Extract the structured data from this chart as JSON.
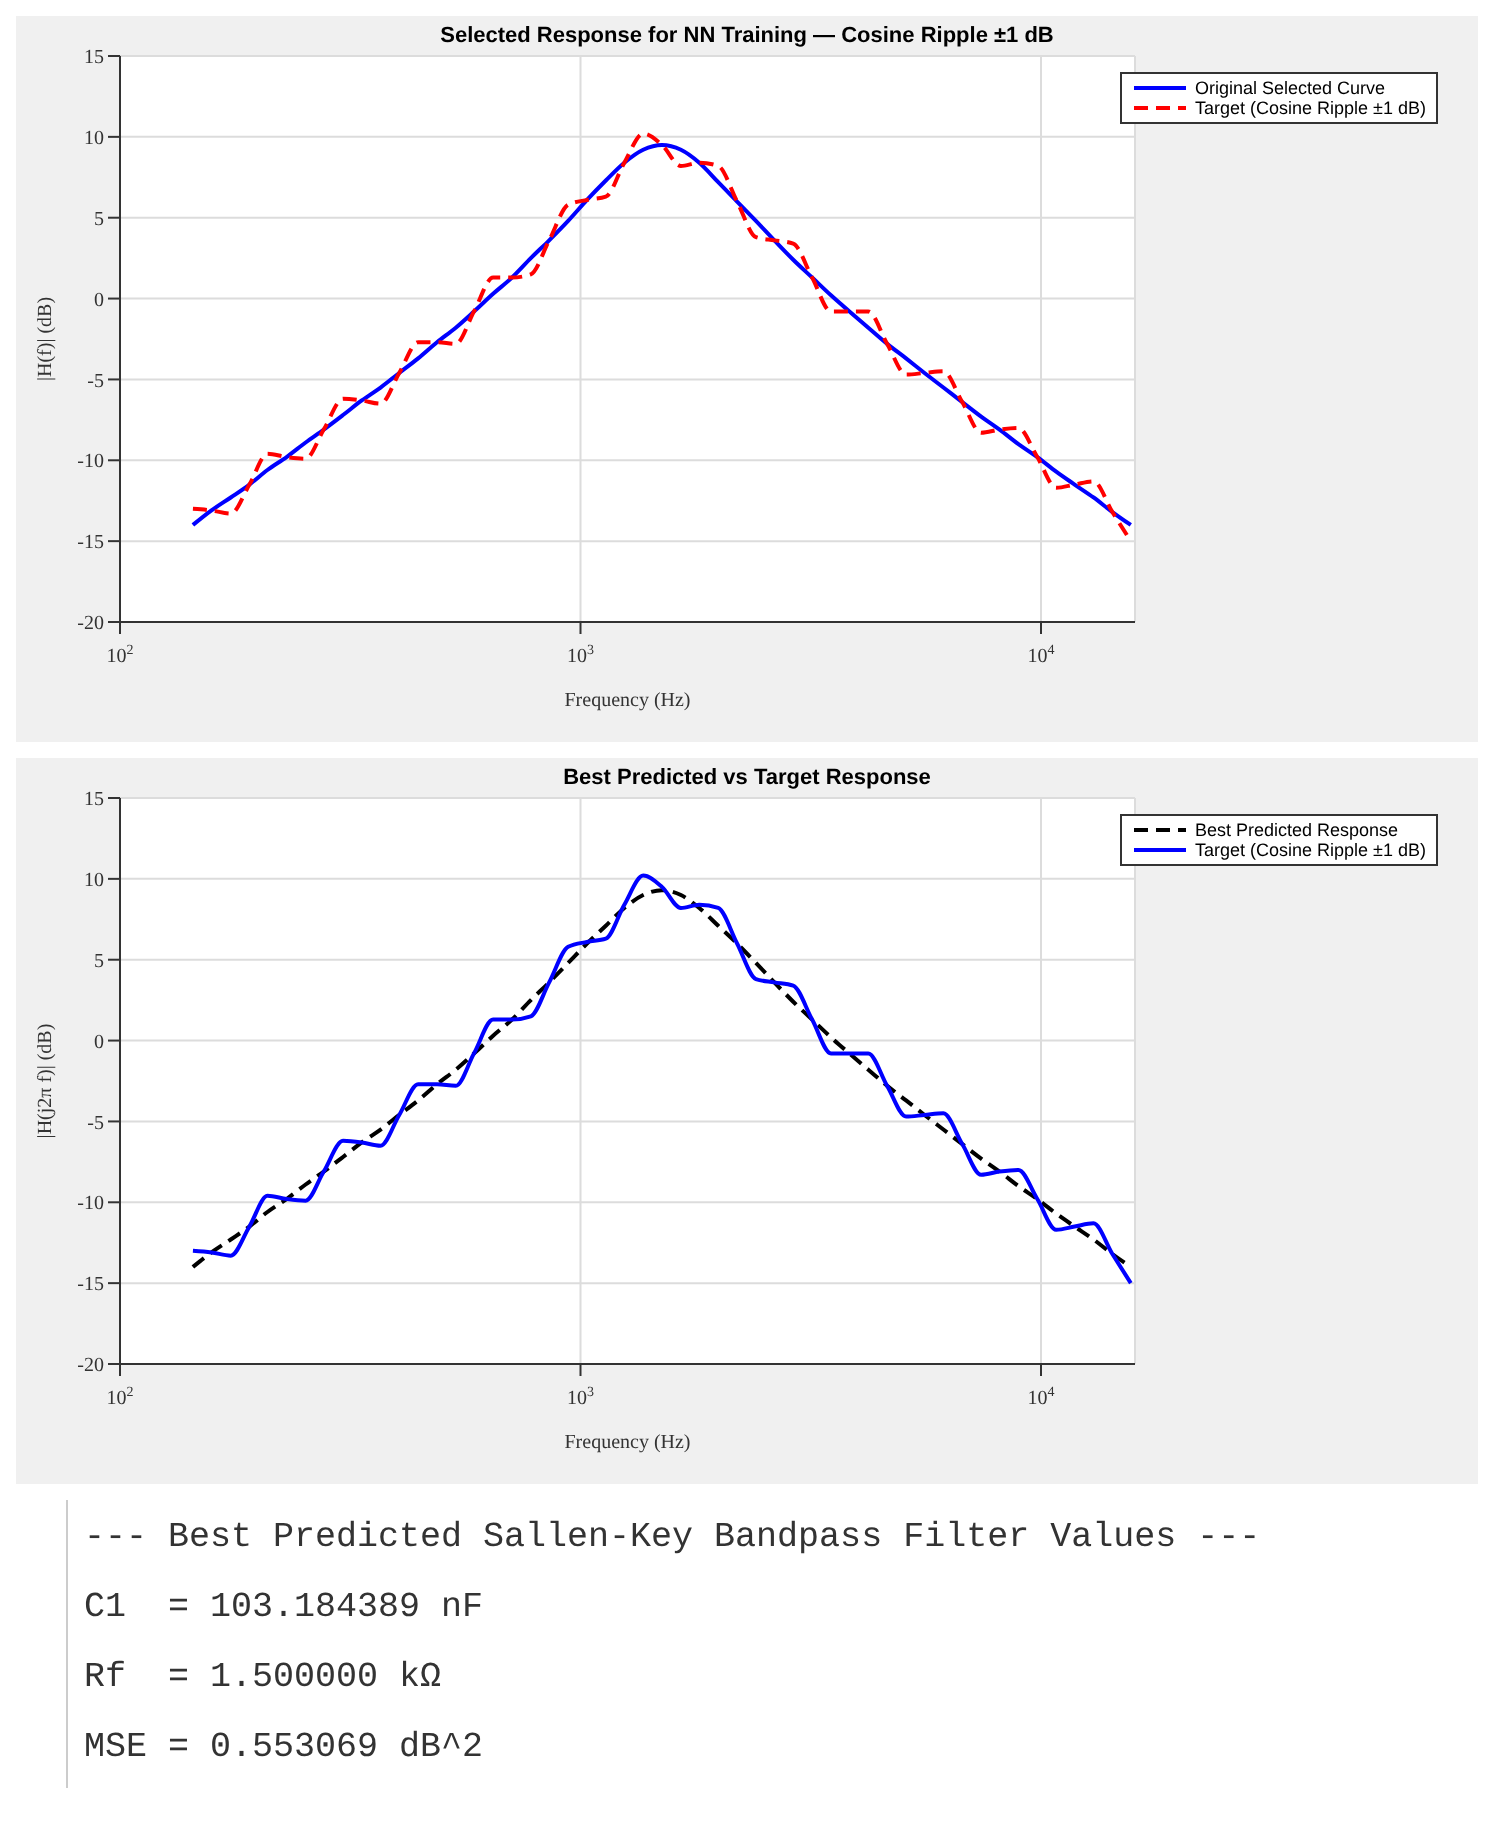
{
  "chart_data": [
    {
      "type": "line",
      "title": "Selected Response for NN Training — Cosine Ripple ±1 dB",
      "xlabel": "Frequency (Hz)",
      "ylabel": "|H(f)| (dB)",
      "log": "x",
      "grid": true,
      "legend": "top right",
      "marker": "none",
      "xlim": [
        100,
        16000
      ],
      "xticks": [
        {
          "value": 100,
          "label": "10$^{2}$"
        },
        {
          "value": 1000,
          "label": "10$^{3}$"
        },
        {
          "value": 10000,
          "label": "10$^{4}$"
        }
      ],
      "ylim": [
        -20,
        15
      ],
      "yticks": [
        -20,
        -15,
        -10,
        -5,
        0,
        5,
        10,
        15
      ],
      "x": [
        144,
        158,
        174,
        191,
        209,
        230,
        253,
        277,
        305,
        335,
        368,
        404,
        444,
        488,
        536,
        587,
        646,
        710,
        780,
        855,
        940,
        1033,
        1135,
        1245,
        1368,
        1503,
        1652,
        1811,
        1991,
        2188,
        2404,
        2636,
        2897,
        3184,
        3499,
        3837,
        4217,
        4634,
        5093,
        5585,
        6138,
        6745,
        7413,
        8128,
        8933,
        9817,
        10789,
        11830,
        13002,
        14289,
        15668
      ],
      "series": [
        {
          "name": "Original Selected Curve",
          "color": "#0000ff",
          "line_style": "solid",
          "values": [
            -14.0,
            -13.1,
            -12.3,
            -11.5,
            -10.6,
            -9.8,
            -8.9,
            -8.1,
            -7.2,
            -6.3,
            -5.5,
            -4.6,
            -3.7,
            -2.7,
            -1.8,
            -0.8,
            0.3,
            1.3,
            2.5,
            3.6,
            4.8,
            6.1,
            7.3,
            8.4,
            9.2,
            9.5,
            9.2,
            8.4,
            7.2,
            6.0,
            4.8,
            3.6,
            2.4,
            1.3,
            0.2,
            -0.8,
            -1.8,
            -2.8,
            -3.7,
            -4.6,
            -5.5,
            -6.4,
            -7.3,
            -8.1,
            -9.0,
            -9.8,
            -10.7,
            -11.5,
            -12.3,
            -13.2,
            -14.0
          ]
        },
        {
          "name": "Target (Cosine Ripple ±1 dB)",
          "color": "#ff0000",
          "line_style": "dashed",
          "values": [
            -13.0,
            -13.1,
            -13.3,
            -11.5,
            -9.6,
            -9.8,
            -9.9,
            -8.1,
            -6.2,
            -6.3,
            -6.5,
            -4.6,
            -2.7,
            -2.7,
            -2.8,
            -0.8,
            1.3,
            1.3,
            1.5,
            3.6,
            5.8,
            6.1,
            6.3,
            8.4,
            10.2,
            9.5,
            8.2,
            8.4,
            8.2,
            6.0,
            3.8,
            3.6,
            3.4,
            1.3,
            -0.8,
            -0.8,
            -0.8,
            -2.8,
            -4.7,
            -4.6,
            -4.5,
            -6.4,
            -8.3,
            -8.1,
            -8.0,
            -9.8,
            -11.7,
            -11.5,
            -11.3,
            -13.2,
            -15.0
          ]
        }
      ]
    },
    {
      "type": "line",
      "title": "Best Predicted vs Target Response",
      "xlabel": "Frequency (Hz)",
      "ylabel": "|H(j2π f)| (dB)",
      "log": "x",
      "grid": true,
      "legend": "top right",
      "marker": "none",
      "xlim": [
        100,
        16000
      ],
      "xticks": [
        {
          "value": 100,
          "label": "10$^{2}$"
        },
        {
          "value": 1000,
          "label": "10$^{3}$"
        },
        {
          "value": 10000,
          "label": "10$^{4}$"
        }
      ],
      "ylim": [
        -20,
        15
      ],
      "yticks": [
        -20,
        -15,
        -10,
        -5,
        0,
        5,
        10,
        15
      ],
      "x": [
        144,
        158,
        174,
        191,
        209,
        230,
        253,
        277,
        305,
        335,
        368,
        404,
        444,
        488,
        536,
        587,
        646,
        710,
        780,
        855,
        940,
        1033,
        1135,
        1245,
        1368,
        1503,
        1652,
        1811,
        1991,
        2188,
        2404,
        2636,
        2897,
        3184,
        3499,
        3837,
        4217,
        4634,
        5093,
        5585,
        6138,
        6745,
        7413,
        8128,
        8933,
        9817,
        10789,
        11830,
        13002,
        14289,
        15668
      ],
      "series": [
        {
          "name": "Best Predicted Response",
          "color": "#000000",
          "line_style": "dashed",
          "values": [
            -14.0,
            -13.1,
            -12.3,
            -11.5,
            -10.6,
            -9.8,
            -8.9,
            -8.1,
            -7.2,
            -6.3,
            -5.5,
            -4.6,
            -3.7,
            -2.7,
            -1.8,
            -0.8,
            0.3,
            1.3,
            2.5,
            3.6,
            4.8,
            6.0,
            7.1,
            8.2,
            9.0,
            9.3,
            9.0,
            8.2,
            7.1,
            6.0,
            4.8,
            3.6,
            2.4,
            1.3,
            0.2,
            -0.8,
            -1.8,
            -2.8,
            -3.7,
            -4.6,
            -5.5,
            -6.4,
            -7.3,
            -8.1,
            -9.0,
            -9.8,
            -10.7,
            -11.5,
            -12.3,
            -13.2,
            -14.0
          ]
        },
        {
          "name": "Target (Cosine Ripple ±1 dB)",
          "color": "#0000ff",
          "line_style": "solid",
          "values": [
            -13.0,
            -13.1,
            -13.3,
            -11.5,
            -9.6,
            -9.8,
            -9.9,
            -8.1,
            -6.2,
            -6.3,
            -6.5,
            -4.6,
            -2.7,
            -2.7,
            -2.8,
            -0.8,
            1.3,
            1.3,
            1.5,
            3.6,
            5.8,
            6.1,
            6.3,
            8.4,
            10.2,
            9.5,
            8.2,
            8.4,
            8.2,
            6.0,
            3.8,
            3.6,
            3.4,
            1.3,
            -0.8,
            -0.8,
            -0.8,
            -2.8,
            -4.7,
            -4.6,
            -4.5,
            -6.4,
            -8.3,
            -8.1,
            -8.0,
            -9.8,
            -11.7,
            -11.5,
            -11.3,
            -13.2,
            -15.0
          ]
        }
      ]
    },
    {
      "type": "other",
      "annotations": [
        "--- Best Predicted Sallen-Key Bandpass Filter Values ---",
        "C1  = 103.184389 nF",
        "Rf  = 1.500000 kΩ",
        "MSE = 0.553069 dB^2"
      ]
    }
  ]
}
